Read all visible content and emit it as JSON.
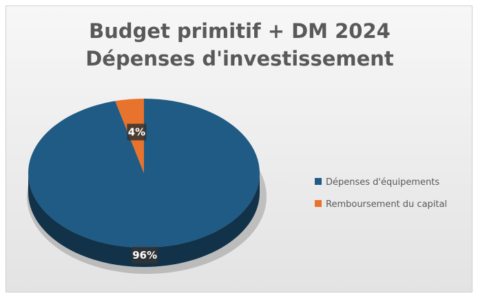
{
  "chart_data": {
    "type": "pie",
    "title": [
      "Budget primitif + DM 2024",
      "Dépenses d'investissement"
    ],
    "categories": [
      "Dépenses d'équipements",
      "Remboursement du capital"
    ],
    "values": [
      96,
      4
    ],
    "labels": [
      "96%",
      "4%"
    ],
    "colors": [
      "#1f5b85",
      "#e8732c"
    ],
    "legend": "right"
  }
}
